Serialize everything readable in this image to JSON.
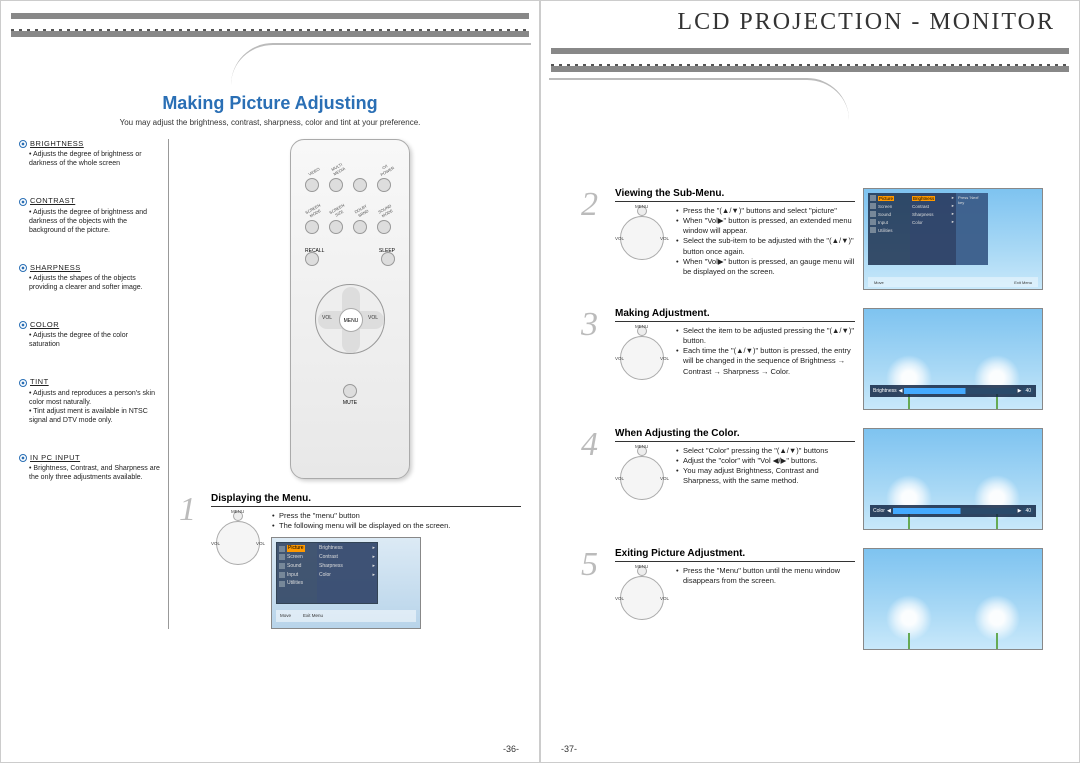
{
  "header": {
    "right_title": "LCD PROJECTION - MONITOR"
  },
  "left_page": {
    "title": "Making Picture Adjusting",
    "subtitle": "You may adjust the brightness, contrast, sharpness, color and tint at your preference.",
    "page_num": "-36-",
    "definitions": [
      {
        "label": "BRIGHTNESS",
        "text": "Adjusts the degree of brightness or darkness of the whole screen"
      },
      {
        "label": "CONTRAST",
        "text": "Adjusts the degree of brightness and darkness of the objects with the background of the picture."
      },
      {
        "label": "SHARPNESS",
        "text": "Adjusts the shapes of the objects providing a clearer and softer image."
      },
      {
        "label": "COLOR",
        "text": "Adjusts the degree of the color saturation"
      },
      {
        "label": "TINT",
        "text": "Adjusts and reproduces a person's skin color most naturally.\nTint adjust ment is available in NTSC signal and DTV mode only."
      },
      {
        "label": "IN PC INPUT",
        "text": "Brightness, Contrast, and Sharpness are the only three adjustments available."
      }
    ],
    "remote": {
      "row1": [
        "VIDEO",
        "MULTI MEDIA",
        "",
        "⏻/I POWER"
      ],
      "row2": [
        "SCREEN MODE",
        "SCREEN SIZE",
        "DOLBY SRND",
        "SOUND MODE"
      ],
      "row3_left": "RECALL",
      "row3_right": "SLEEP",
      "dpad_center": "MENU",
      "dpad_left": "VOL",
      "dpad_right": "VOL",
      "mute": "MUTE"
    },
    "step1": {
      "num": "1",
      "title": "Displaying the Menu.",
      "bullets": [
        "Press the \"menu\" button",
        "The following menu will be displayed on the screen."
      ],
      "dpad": {
        "top": "MENU",
        "left": "VOL",
        "right": "VOL"
      },
      "osd": {
        "col1": [
          "Picture",
          "Screen",
          "Sound",
          "Input",
          "Utilities"
        ],
        "col2": [
          "Brightness",
          "Contrast",
          "Sharpness",
          "Color"
        ],
        "bar": [
          "Move",
          "",
          "Exit Menu"
        ]
      }
    }
  },
  "right_page": {
    "page_num": "-37-",
    "steps": [
      {
        "num": "2",
        "title": "Viewing the Sub-Menu.",
        "bullets": [
          "Press the \"(▲/▼)\" buttons and select \"picture\"",
          "When \"Vol▶\" button is pressed, an extended menu window will appear.",
          "Select the sub-item to be adjusted with the \"(▲/▼)\" button once again.",
          "When \"Vol▶\" button is pressed, an gauge menu will be displayed on the screen."
        ],
        "dpad": {
          "top": "MENU",
          "left": "VOL",
          "right": "VOL"
        },
        "shot": {
          "type": "menu",
          "col1": [
            "Picture",
            "Screen",
            "Sound",
            "Input",
            "Utilities"
          ],
          "col2": [
            "Brightness",
            "Contrast",
            "Sharpness",
            "Color"
          ],
          "col3_label": "Press 'Next' key",
          "bar": [
            "Move",
            "",
            "Exit Menu"
          ]
        }
      },
      {
        "num": "3",
        "title": "Making Adjustment.",
        "bullets": [
          "Select the item to be adjusted pressing the \"(▲/▼)\" button.",
          "Each time the \"(▲/▼)\" button is pressed, the entry will be changed in the sequence of Brightness → Contrast → Sharpness → Color."
        ],
        "dpad": {
          "top": "MENU",
          "left": "VOL",
          "right": "VOL"
        },
        "shot": {
          "type": "slider",
          "label": "Brightness",
          "value": "40"
        }
      },
      {
        "num": "4",
        "title": "When Adjusting the Color.",
        "bullets": [
          "Select \"Color\" pressing the \"(▲/▼)\" buttons",
          "Adjust the \"color\" with \"Vol ◀/▶\" buttons.",
          "You may adjust Brightness, Contrast and Sharpness, with the same method."
        ],
        "dpad": {
          "top": "MENU",
          "left": "VOL",
          "right": "VOL"
        },
        "shot": {
          "type": "slider",
          "label": "Color",
          "value": "40"
        }
      },
      {
        "num": "5",
        "title": "Exiting Picture Adjustment.",
        "bullets": [
          "Press the \"Menu\" button until the menu window disappears from the screen."
        ],
        "dpad": {
          "top": "MENU",
          "left": "VOL",
          "right": "VOL"
        },
        "shot": {
          "type": "plain"
        }
      }
    ]
  },
  "colors": {
    "accent": "#2a6fb5",
    "sky1": "#7ec3f0",
    "sky2": "#c8e8fa",
    "osd_bg": "#2a3c5a",
    "highlight": "#ff9900"
  }
}
